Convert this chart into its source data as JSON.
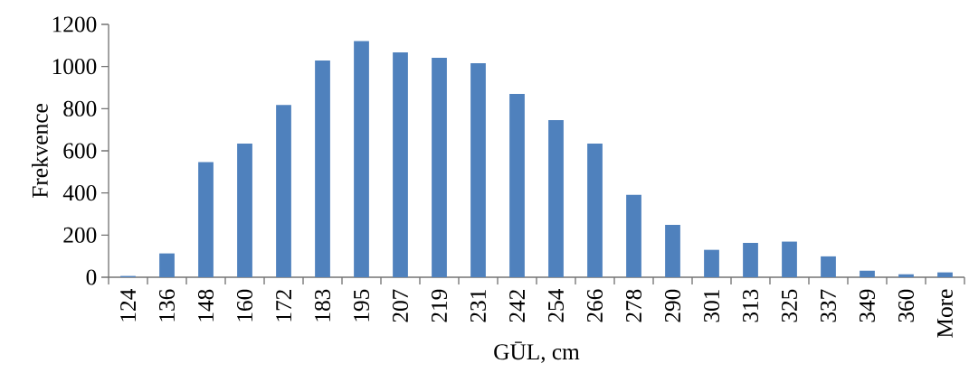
{
  "chart_data": {
    "type": "bar",
    "xlabel": "GŪL, cm",
    "ylabel": "Frekvence",
    "categories": [
      "124",
      "136",
      "148",
      "160",
      "172",
      "183",
      "195",
      "207",
      "219",
      "231",
      "242",
      "254",
      "266",
      "278",
      "290",
      "301",
      "313",
      "325",
      "337",
      "349",
      "360",
      "More"
    ],
    "values": [
      6,
      113,
      546,
      634,
      817,
      1029,
      1121,
      1067,
      1041,
      1016,
      870,
      746,
      634,
      391,
      249,
      130,
      163,
      169,
      99,
      31,
      14,
      23
    ],
    "color": "#4f81bd",
    "ylim": [
      0,
      1200
    ],
    "yticks": [
      0,
      200,
      400,
      600,
      800,
      1000,
      1200
    ]
  }
}
